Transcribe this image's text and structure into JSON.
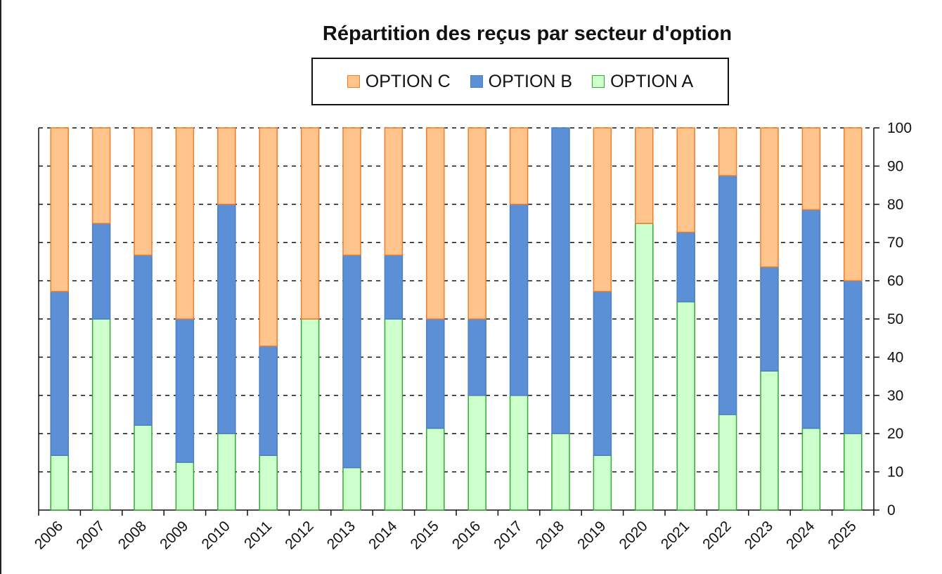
{
  "chart_data": {
    "type": "bar",
    "stacked": true,
    "title": "Répartition des reçus par secteur d'option",
    "categories": [
      "2006",
      "2007",
      "2008",
      "2009",
      "2010",
      "2011",
      "2012",
      "2013",
      "2014",
      "2015",
      "2016",
      "2017",
      "2018",
      "2019",
      "2020",
      "2021",
      "2022",
      "2023",
      "2024",
      "2025"
    ],
    "series": [
      {
        "name": "OPTION A",
        "color": "#ccffcc",
        "border": "#33aa33",
        "values": [
          14.3,
          50,
          22.2,
          12.5,
          20,
          14.3,
          50,
          11.1,
          50,
          21.4,
          30,
          30,
          20,
          14.3,
          75,
          54.5,
          25,
          36.4,
          21.4,
          20
        ]
      },
      {
        "name": "OPTION B",
        "color": "#5b8fd6",
        "border": "#4d7fc6",
        "values": [
          42.9,
          25,
          44.5,
          37.5,
          60,
          28.6,
          0,
          55.6,
          16.7,
          28.6,
          20,
          50,
          80,
          42.9,
          0,
          18.2,
          62.5,
          27.2,
          57.2,
          40
        ]
      },
      {
        "name": "OPTION C",
        "color": "#ffc48c",
        "border": "#f07d2a",
        "values": [
          42.8,
          25,
          33.3,
          50,
          20,
          57.1,
          50,
          33.3,
          33.3,
          50,
          50,
          20,
          0,
          42.8,
          25,
          27.3,
          12.5,
          36.4,
          21.4,
          40
        ]
      }
    ],
    "legend_order": [
      "OPTION C",
      "OPTION B",
      "OPTION A"
    ],
    "legend_position": "top",
    "ylim": [
      0,
      100
    ],
    "yticks": [
      0,
      10,
      20,
      30,
      40,
      50,
      60,
      70,
      80,
      90,
      100
    ],
    "y_axis_side": "right",
    "grid": true,
    "xlabel": "",
    "ylabel": ""
  }
}
